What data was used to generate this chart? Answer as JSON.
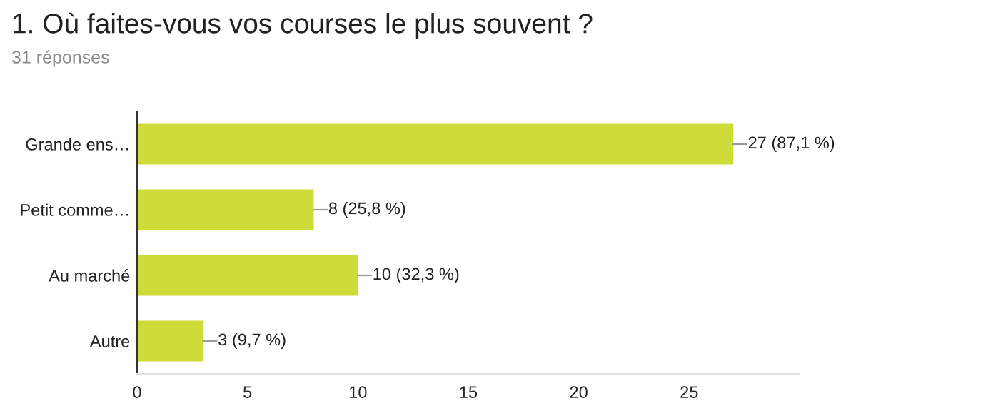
{
  "chart_data": {
    "type": "bar",
    "orientation": "horizontal",
    "title": "1. Où faites-vous vos courses le plus souvent ?",
    "subtitle": "31 réponses",
    "categories": [
      "Grande ens…",
      "Petit comme…",
      "Au marché",
      "Autre"
    ],
    "values": [
      27,
      8,
      10,
      3
    ],
    "value_labels": [
      "27 (87,1 %)",
      "8 (25,8 %)",
      "10 (32,3 %)",
      "3 (9,7 %)"
    ],
    "color": "#cddc39",
    "xlim": [
      0,
      30
    ],
    "xticks": [
      0,
      5,
      10,
      15,
      20,
      25
    ],
    "grid": false,
    "legend": false
  }
}
